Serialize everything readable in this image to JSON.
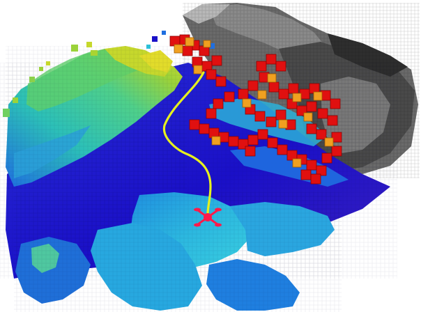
{
  "scene": {
    "description_name": "voxel-occupancy-map",
    "colors": {
      "background": "#ffffff",
      "grey_voxels_dark": "#3a3a3a",
      "grey_voxels_mid": "#6f6f6f",
      "grey_voxels_light": "#a8a8a8",
      "height_low": "#1a10c8",
      "height_mid_low": "#1f6fe0",
      "height_mid": "#2cc0d8",
      "height_mid_high": "#4fd08a",
      "height_high": "#9bd23a",
      "height_top": "#d4dc2a",
      "obstacle_voxel": "#e01010",
      "obstacle_voxel_edge": "#8a0000",
      "frontier_voxel": "#f0a020",
      "trajectory": "#e6f01e",
      "drone_marker": "#ff1a4a"
    },
    "icons": [
      "drone-icon"
    ]
  }
}
